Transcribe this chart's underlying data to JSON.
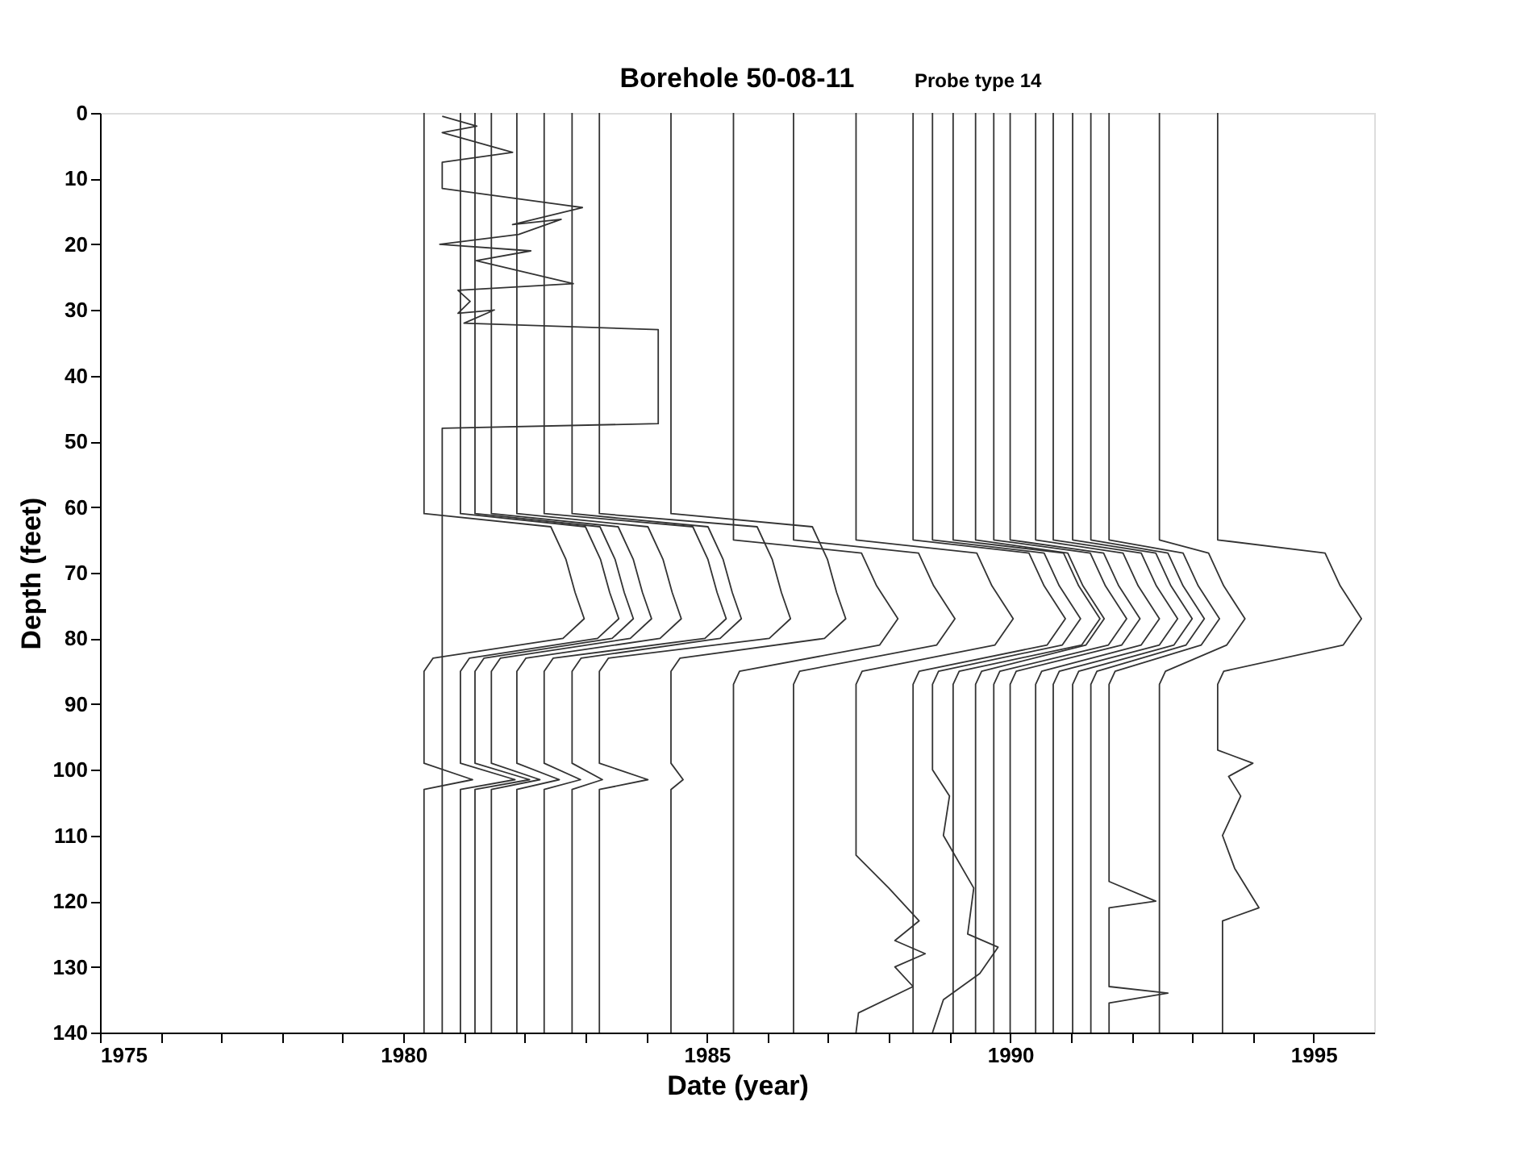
{
  "chart_data": {
    "type": "line",
    "title": "Borehole 50-08-11",
    "subtitle": "Probe type 14",
    "xlabel": "Date (year)",
    "ylabel": "Depth (feet)",
    "xlim": [
      1975,
      1996
    ],
    "ylim": [
      140,
      0
    ],
    "xticks": [
      1975,
      {
        "value": 1976,
        "label": null
      },
      {
        "value": 1977,
        "label": null
      },
      {
        "value": 1978,
        "label": null
      },
      {
        "value": 1979,
        "label": null
      },
      1980,
      {
        "value": 1981,
        "label": null
      },
      {
        "value": 1982,
        "label": null
      },
      {
        "value": 1983,
        "label": null
      },
      {
        "value": 1984,
        "label": null
      },
      1985,
      {
        "value": 1986,
        "label": null
      },
      {
        "value": 1987,
        "label": null
      },
      {
        "value": 1988,
        "label": null
      },
      {
        "value": 1989,
        "label": null
      },
      1990,
      {
        "value": 1991,
        "label": null
      },
      {
        "value": 1992,
        "label": null
      },
      {
        "value": 1993,
        "label": null
      },
      {
        "value": 1994,
        "label": null
      },
      1995
    ],
    "yticks": [
      0,
      10,
      20,
      30,
      40,
      50,
      60,
      70,
      80,
      90,
      100,
      110,
      120,
      130,
      140
    ],
    "grid": false,
    "legend": false,
    "marker": "none",
    "line_style": "solid",
    "series": [
      {
        "color": "#333333",
        "x": [
          1980.34,
          1980.34,
          1982.43,
          1982.68,
          1982.83,
          1982.98,
          1982.63,
          1980.49,
          1980.34,
          1980.34,
          1981.14,
          1980.34,
          1980.34
        ],
        "values": [
          0,
          61,
          63,
          68,
          73,
          77,
          80,
          83,
          85,
          99,
          101.5,
          103,
          140
        ]
      },
      {
        "color": "#333333",
        "x": [
          1980.64,
          1981.21,
          1980.64,
          1981.8,
          1980.64,
          1980.64,
          1982.95,
          1981.8,
          1982.6,
          1981.9,
          1980.6,
          1982.1,
          1981.2,
          1982.8,
          1980.9,
          1981.1,
          1980.9,
          1981.5,
          1981.0,
          1984.2,
          1984.2,
          1980.64,
          1980.64
        ],
        "values": [
          0.5,
          2,
          3,
          6,
          7.5,
          11.5,
          14.4,
          17,
          16.2,
          18.5,
          20,
          21,
          22.5,
          26,
          27,
          28.7,
          30.5,
          30,
          32,
          33,
          47.3,
          48,
          140
        ]
      },
      {
        "color": "#333333",
        "x": [
          1980.94,
          1980.94,
          1983.0,
          1983.25,
          1983.4,
          1983.55,
          1983.2,
          1981.09,
          1980.94,
          1980.94,
          1981.84,
          1980.94,
          1980.94
        ],
        "values": [
          0,
          61,
          63,
          68,
          73,
          77,
          80,
          83,
          85,
          99,
          101.5,
          103,
          140
        ]
      },
      {
        "color": "#333333",
        "x": [
          1981.18,
          1981.18,
          1983.24,
          1983.49,
          1983.64,
          1983.79,
          1983.44,
          1981.33,
          1981.18,
          1981.18,
          1982.08,
          1981.18,
          1981.18
        ],
        "values": [
          0,
          61,
          63,
          68,
          73,
          77,
          80,
          83,
          85,
          99,
          101.5,
          103,
          140
        ]
      },
      {
        "color": "#333333",
        "x": [
          1981.45,
          1981.45,
          1983.54,
          1983.79,
          1983.94,
          1984.09,
          1983.74,
          1981.6,
          1981.45,
          1981.45,
          1982.25,
          1981.45,
          1981.45
        ],
        "values": [
          0,
          61,
          63,
          68,
          73,
          77,
          80,
          83,
          85,
          99,
          101.5,
          103,
          140
        ]
      },
      {
        "color": "#333333",
        "x": [
          1981.87,
          1981.87,
          1984.03,
          1984.28,
          1984.43,
          1984.58,
          1984.23,
          1982.02,
          1981.87,
          1981.87,
          1982.57,
          1981.87,
          1981.87
        ],
        "values": [
          0,
          61,
          63,
          68,
          73,
          77,
          80,
          83,
          85,
          99,
          101.5,
          103,
          140
        ]
      },
      {
        "color": "#333333",
        "x": [
          1982.32,
          1982.32,
          1984.77,
          1985.02,
          1985.17,
          1985.32,
          1984.97,
          1982.47,
          1982.32,
          1982.32,
          1982.92,
          1982.32,
          1982.32
        ],
        "values": [
          0,
          61,
          63,
          68,
          73,
          77,
          80,
          83,
          85,
          99,
          101.5,
          103,
          140
        ]
      },
      {
        "color": "#333333",
        "x": [
          1982.78,
          1982.78,
          1985.02,
          1985.27,
          1985.42,
          1985.57,
          1985.22,
          1982.93,
          1982.78,
          1982.78,
          1983.28,
          1982.78,
          1982.78
        ],
        "values": [
          0,
          61,
          63,
          68,
          73,
          77,
          80,
          83,
          85,
          99,
          101.5,
          103,
          140
        ]
      },
      {
        "color": "#333333",
        "x": [
          1983.23,
          1983.23,
          1985.83,
          1986.08,
          1986.23,
          1986.38,
          1986.03,
          1983.38,
          1983.23,
          1983.23,
          1984.03,
          1983.23,
          1983.23
        ],
        "values": [
          0,
          61,
          63,
          68,
          73,
          77,
          80,
          83,
          85,
          99,
          101.5,
          103,
          140
        ]
      },
      {
        "color": "#333333",
        "x": [
          1984.41,
          1984.41,
          1986.74,
          1986.99,
          1987.14,
          1987.29,
          1986.94,
          1984.56,
          1984.41,
          1984.41,
          1984.61,
          1984.41,
          1984.41
        ],
        "values": [
          0,
          61,
          63,
          68,
          73,
          77,
          80,
          83,
          85,
          99,
          101.5,
          103,
          140
        ]
      },
      {
        "color": "#333333",
        "x": [
          1985.44,
          1985.44,
          1987.55,
          1987.8,
          1988.15,
          1987.85,
          1985.54,
          1985.44,
          1985.44
        ],
        "values": [
          0,
          65,
          67,
          72,
          77,
          81,
          85,
          87,
          140
        ]
      },
      {
        "color": "#333333",
        "x": [
          1986.43,
          1986.43,
          1988.49,
          1988.74,
          1989.09,
          1988.79,
          1986.53,
          1986.43,
          1986.43
        ],
        "values": [
          0,
          65,
          67,
          72,
          77,
          81,
          85,
          87,
          140
        ]
      },
      {
        "color": "#333333",
        "x": [
          1987.46,
          1987.46,
          1989.45,
          1989.7,
          1990.05,
          1989.75,
          1987.56,
          1987.46,
          1987.46,
          1988.0,
          1988.5,
          1988.1,
          1988.6,
          1988.1,
          1988.4,
          1987.5,
          1987.46
        ],
        "values": [
          0,
          65,
          67,
          72,
          77,
          81,
          85,
          87,
          113,
          118,
          123,
          126,
          128,
          130,
          133,
          137,
          140
        ]
      },
      {
        "color": "#333333",
        "x": [
          1988.4,
          1988.4,
          1990.31,
          1990.56,
          1990.91,
          1990.61,
          1988.5,
          1988.4,
          1988.4
        ],
        "values": [
          0,
          65,
          67,
          72,
          77,
          81,
          85,
          87,
          140
        ]
      },
      {
        "color": "#333333",
        "x": [
          1988.72,
          1988.72,
          1990.56,
          1990.81,
          1991.16,
          1990.86,
          1988.82,
          1988.72,
          1988.72,
          1989.0,
          1988.9,
          1989.4,
          1989.3,
          1989.8,
          1989.5,
          1988.9,
          1988.72
        ],
        "values": [
          0,
          65,
          67,
          72,
          77,
          81,
          85,
          87,
          100,
          104,
          110,
          118,
          125,
          127,
          131,
          135,
          140
        ]
      },
      {
        "color": "#333333",
        "x": [
          1989.06,
          1989.06,
          1990.88,
          1991.13,
          1991.48,
          1991.18,
          1989.16,
          1989.06,
          1989.06
        ],
        "values": [
          0,
          65,
          67,
          72,
          77,
          81,
          85,
          87,
          140
        ]
      },
      {
        "color": "#333333",
        "x": [
          1989.43,
          1989.43,
          1990.95,
          1991.2,
          1991.55,
          1991.25,
          1989.53,
          1989.43,
          1989.43
        ],
        "values": [
          0,
          65,
          67,
          72,
          77,
          81,
          85,
          87,
          140
        ]
      },
      {
        "color": "#333333",
        "x": [
          1989.73,
          1989.73,
          1991.32,
          1991.57,
          1991.92,
          1991.62,
          1989.83,
          1989.73,
          1989.73
        ],
        "values": [
          0,
          65,
          67,
          72,
          77,
          81,
          85,
          87,
          140
        ]
      },
      {
        "color": "#333333",
        "x": [
          1990,
          1990,
          1991.54,
          1991.79,
          1992.14,
          1991.84,
          1990.1,
          1990,
          1990
        ],
        "values": [
          0,
          65,
          67,
          72,
          77,
          81,
          85,
          87,
          140
        ]
      },
      {
        "color": "#333333",
        "x": [
          1990.42,
          1990.42,
          1991.86,
          1992.11,
          1992.46,
          1992.16,
          1990.52,
          1990.42,
          1990.42
        ],
        "values": [
          0,
          65,
          67,
          72,
          77,
          81,
          85,
          87,
          140
        ]
      },
      {
        "color": "#333333",
        "x": [
          1990.71,
          1990.71,
          1992.16,
          1992.41,
          1992.76,
          1992.46,
          1990.81,
          1990.71,
          1990.71
        ],
        "values": [
          0,
          65,
          67,
          72,
          77,
          81,
          85,
          87,
          140
        ]
      },
      {
        "color": "#333333",
        "x": [
          1991.03,
          1991.03,
          1992.4,
          1992.65,
          1993.0,
          1992.7,
          1991.13,
          1991.03,
          1991.03
        ],
        "values": [
          0,
          65,
          67,
          72,
          77,
          81,
          85,
          87,
          140
        ]
      },
      {
        "color": "#333333",
        "x": [
          1991.33,
          1991.33,
          1992.6,
          1992.85,
          1993.2,
          1992.9,
          1991.43,
          1991.33,
          1991.33
        ],
        "values": [
          0,
          65,
          67,
          72,
          77,
          81,
          85,
          87,
          140
        ]
      },
      {
        "color": "#333333",
        "x": [
          1991.63,
          1991.63,
          1992.85,
          1993.1,
          1993.45,
          1993.15,
          1991.73,
          1991.63,
          1991.63,
          1992.4,
          1991.63,
          1991.63,
          1992.6,
          1991.63,
          1991.63
        ],
        "values": [
          0,
          65,
          67,
          72,
          77,
          81,
          85,
          87,
          117,
          120,
          121,
          133,
          134,
          135.5,
          140
        ]
      },
      {
        "color": "#333333",
        "x": [
          1992.46,
          1992.46,
          1993.27,
          1993.52,
          1993.87,
          1993.57,
          1992.56,
          1992.46,
          1992.46
        ],
        "values": [
          0,
          65,
          67,
          72,
          77,
          81,
          85,
          87,
          140
        ]
      },
      {
        "color": "#333333",
        "x": [
          1993.42,
          1993.42,
          1995.19,
          1995.44,
          1995.79,
          1995.49,
          1993.52,
          1993.42,
          1993.42,
          1994.0,
          1993.6,
          1993.8,
          1993.5,
          1993.7,
          1994.1,
          1993.5,
          1993.5
        ],
        "values": [
          0,
          65,
          67,
          72,
          77,
          81,
          85,
          87,
          97,
          99,
          101,
          104,
          110,
          115,
          121,
          123,
          140
        ]
      }
    ]
  }
}
